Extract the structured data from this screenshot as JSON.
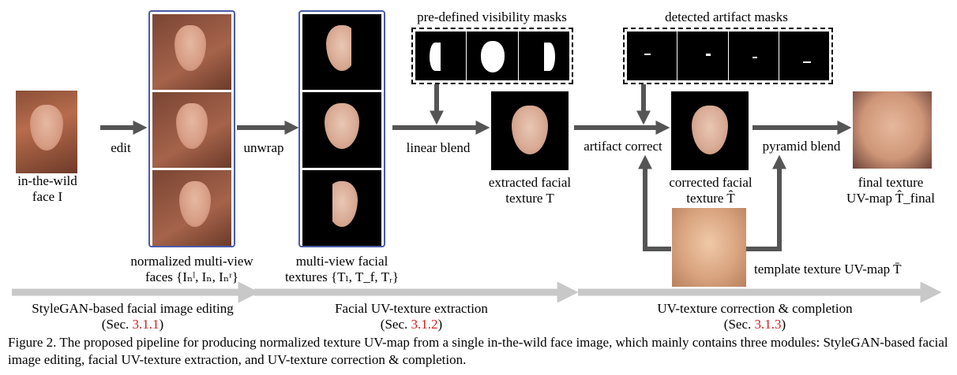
{
  "labels": {
    "edit": "edit",
    "unwrap": "unwrap",
    "linear_blend": "linear blend",
    "artifact_correct": "artifact correct",
    "pyramid_blend": "pyramid blend",
    "predefined_masks": "pre-defined visibility masks",
    "detected_masks": "detected artifact masks",
    "input_face_line1": "in-the-wild",
    "input_face_line2": "face I",
    "normalized_faces_line1": "normalized multi-view",
    "normalized_faces_line2": "faces {Iₙˡ, Iₙ, Iₙʳ}",
    "multiview_textures_line1": "multi-view facial",
    "multiview_textures_line2": "textures {Tₗ, T_f, Tᵣ}",
    "extracted_line1": "extracted facial",
    "extracted_line2": "texture T",
    "corrected_line1": "corrected facial",
    "corrected_line2": "texture T̂",
    "final_line1": "final texture",
    "final_line2": "UV-map T̂_final",
    "template": "template texture UV-map T̄"
  },
  "modules": [
    {
      "name": "StyleGAN-based facial image editing",
      "ref_prefix": "(Sec. ",
      "ref": "3.1.1",
      "ref_suffix": ")"
    },
    {
      "name": "Facial UV-texture extraction",
      "ref_prefix": "(Sec. ",
      "ref": "3.1.2",
      "ref_suffix": ")"
    },
    {
      "name": "UV-texture correction & completion",
      "ref_prefix": "(Sec. ",
      "ref": "3.1.3",
      "ref_suffix": ")"
    }
  ],
  "caption": {
    "text": "Figure 2. The proposed pipeline for producing normalized texture UV-map from a single in-the-wild face image, which mainly contains three modules: StyleGAN-based facial image editing, facial UV-texture extraction, and UV-texture correction & completion."
  },
  "colors": {
    "arrow": "#555555",
    "module_arrow": "#c8c8c8",
    "blue_frame": "#4a5aa8",
    "ref_red": "#d01f1f"
  }
}
